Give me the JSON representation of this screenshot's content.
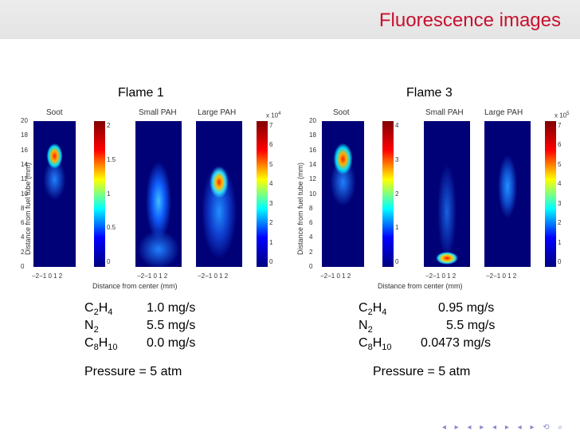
{
  "slide": {
    "title": "Fluorescence images"
  },
  "flame1": {
    "title": "Flame 1",
    "panels": [
      "Soot",
      "Small PAH",
      "Large PAH"
    ],
    "ylabel": "Distance from fuel tube (mm)",
    "xlabel": "Distance from center (mm)",
    "y_ticks": [
      "20",
      "18",
      "16",
      "14",
      "12",
      "10",
      "8",
      "6",
      "4",
      "2",
      "0"
    ],
    "x_ticks": "−2−1 0 1 2",
    "soot_cbar_ticks": [
      "2",
      "1.5",
      "1",
      "0.5",
      "0"
    ],
    "pah_cbar_ticks": [
      "7",
      "6",
      "5",
      "4",
      "3",
      "2",
      "1",
      "0"
    ],
    "pah_cbar_multiplier": "x 10",
    "pah_cbar_exponent": "4",
    "species": [
      {
        "base": "C",
        "sub1": "2",
        "mid": "H",
        "sub2": "4",
        "value": "1.0 mg/s"
      },
      {
        "base": "N",
        "sub1": "2",
        "mid": "",
        "sub2": "",
        "value": "5.5 mg/s"
      },
      {
        "base": "C",
        "sub1": "8",
        "mid": "H",
        "sub2": "10",
        "value": "0.0 mg/s"
      }
    ],
    "pressure": "Pressure = 5 atm"
  },
  "flame3": {
    "title": "Flame 3",
    "panels": [
      "Soot",
      "Small PAH",
      "Large PAH"
    ],
    "ylabel": "Distance from fuel tube (mm)",
    "xlabel": "Distance from center (mm)",
    "y_ticks": [
      "20",
      "18",
      "16",
      "14",
      "12",
      "10",
      "8",
      "6",
      "4",
      "2",
      "0"
    ],
    "x_ticks": "−2−1 0 1 2",
    "soot_cbar_ticks": [
      "4",
      "3",
      "2",
      "1",
      "0"
    ],
    "pah_cbar_ticks": [
      "7",
      "6",
      "5",
      "4",
      "3",
      "2",
      "1",
      "0"
    ],
    "pah_cbar_multiplier": "x 10",
    "pah_cbar_exponent": "5",
    "species": [
      {
        "base": "C",
        "sub1": "2",
        "mid": "H",
        "sub2": "4",
        "value": "0.95 mg/s"
      },
      {
        "base": "N",
        "sub1": "2",
        "mid": "",
        "sub2": "",
        "value": "5.5 mg/s"
      },
      {
        "base": "C",
        "sub1": "8",
        "mid": "H",
        "sub2": "10",
        "value": "0.0473 mg/s"
      }
    ],
    "pressure": "Pressure = 5 atm"
  },
  "colors": {
    "title_red": "#c8102e",
    "image_bg": "#000077"
  }
}
